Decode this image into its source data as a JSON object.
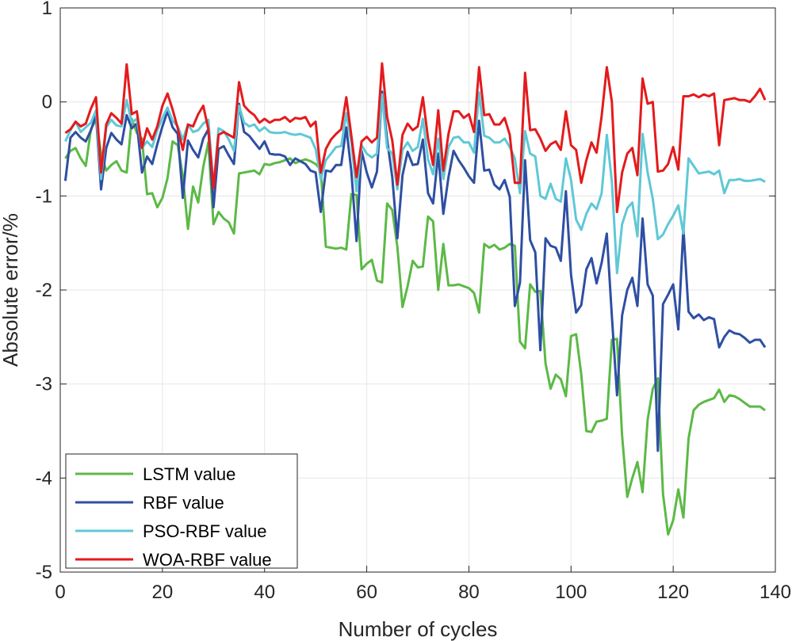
{
  "chart_data": {
    "type": "line",
    "title": "",
    "xlabel": "Number of cycles",
    "ylabel": "Absolute error/%",
    "xlim": [
      0,
      140
    ],
    "ylim": [
      -5,
      1
    ],
    "xticks": [
      0,
      20,
      40,
      60,
      80,
      100,
      120,
      140
    ],
    "yticks": [
      -5,
      -4,
      -3,
      -2,
      -1,
      0,
      1
    ],
    "xtick_labels": [
      "0",
      "20",
      "40",
      "60",
      "80",
      "100",
      "120",
      "140"
    ],
    "ytick_labels": [
      "-5",
      "-4",
      "-3",
      "-2",
      "-1",
      "0",
      "1"
    ],
    "grid": true,
    "legend_position": "bottom-left",
    "x_start": 1,
    "series": [
      {
        "name": "LSTM value",
        "color": "#5cb946",
        "values": [
          -0.6,
          -0.52,
          -0.49,
          -0.6,
          -0.68,
          -0.29,
          -0.19,
          -0.55,
          -0.73,
          -0.67,
          -0.63,
          -0.73,
          -0.75,
          -0.18,
          -0.33,
          -0.39,
          -0.98,
          -0.97,
          -1.12,
          -1.02,
          -0.81,
          -0.42,
          -0.46,
          -0.79,
          -1.35,
          -0.9,
          -1.07,
          -0.69,
          -0.43,
          -1.3,
          -1.17,
          -1.24,
          -1.28,
          -1.4,
          -0.76,
          -0.75,
          -0.74,
          -0.73,
          -0.77,
          -0.66,
          -0.67,
          -0.65,
          -0.64,
          -0.62,
          -0.6,
          -0.65,
          -0.63,
          -0.61,
          -0.63,
          -0.66,
          -0.72,
          -1.54,
          -1.55,
          -1.56,
          -1.55,
          -1.57,
          -0.98,
          -0.99,
          -1.78,
          -1.72,
          -1.68,
          -1.9,
          -1.92,
          -1.08,
          -1.15,
          -1.54,
          -2.18,
          -1.96,
          -1.69,
          -1.76,
          -1.75,
          -1.22,
          -1.27,
          -2.0,
          -1.51,
          -1.95,
          -1.95,
          -1.94,
          -1.96,
          -1.98,
          -2.03,
          -2.24,
          -1.51,
          -1.55,
          -1.52,
          -1.57,
          -1.55,
          -1.51,
          -1.53,
          -2.55,
          -2.62,
          -1.94,
          -2.02,
          -2.01,
          -2.78,
          -3.05,
          -2.9,
          -2.95,
          -3.13,
          -2.49,
          -2.47,
          -2.9,
          -3.5,
          -3.51,
          -3.4,
          -3.39,
          -3.37,
          -2.53,
          -2.52,
          -3.55,
          -4.2,
          -4.0,
          -3.83,
          -4.15,
          -3.38,
          -3.05,
          -2.94,
          -4.17,
          -4.6,
          -4.45,
          -4.12,
          -4.42,
          -3.58,
          -3.28,
          -3.22,
          -3.19,
          -3.17,
          -3.15,
          -3.06,
          -3.19,
          -3.12,
          -3.13,
          -3.16,
          -3.2,
          -3.24,
          -3.24,
          -3.24,
          -3.28
        ]
      },
      {
        "name": "RBF value",
        "color": "#2e4fa2",
        "values": [
          -0.84,
          -0.38,
          -0.32,
          -0.38,
          -0.42,
          -0.3,
          -0.14,
          -0.93,
          -0.49,
          -0.33,
          -0.4,
          -0.45,
          -0.14,
          -0.28,
          -0.23,
          -0.75,
          -0.58,
          -0.66,
          -0.45,
          -0.26,
          -0.1,
          -0.27,
          -0.34,
          -1.02,
          -0.41,
          -0.51,
          -0.59,
          -0.39,
          -0.29,
          -1.12,
          -0.5,
          -0.47,
          -0.57,
          -0.66,
          -0.02,
          -0.32,
          -0.36,
          -0.43,
          -0.5,
          -0.42,
          -0.55,
          -0.56,
          -0.56,
          -0.58,
          -0.67,
          -0.6,
          -0.63,
          -0.66,
          -0.73,
          -0.75,
          -1.17,
          -0.73,
          -0.74,
          -0.67,
          -0.67,
          -0.27,
          -0.74,
          -1.48,
          -0.52,
          -0.75,
          -0.91,
          -0.74,
          0.11,
          -0.4,
          -0.8,
          -1.45,
          -0.78,
          -0.53,
          -0.67,
          -0.66,
          -0.4,
          -0.97,
          -1.08,
          -0.55,
          -1.19,
          -0.8,
          -0.52,
          -0.62,
          -0.7,
          -0.79,
          -0.86,
          -0.2,
          -0.73,
          -0.72,
          -0.88,
          -0.93,
          -0.83,
          -1.01,
          -2.17,
          -1.92,
          -0.62,
          -1.47,
          -1.6,
          -2.64,
          -1.45,
          -1.53,
          -1.55,
          -1.69,
          -0.95,
          -1.84,
          -2.24,
          -2.16,
          -1.78,
          -1.66,
          -1.93,
          -1.71,
          -1.4,
          -2.28,
          -3.12,
          -2.27,
          -2.0,
          -1.87,
          -2.17,
          -1.24,
          -1.94,
          -2.06,
          -3.71,
          -2.15,
          -2.05,
          -1.94,
          -2.42,
          -1.34,
          -2.23,
          -2.3,
          -2.26,
          -2.32,
          -2.29,
          -2.31,
          -2.61,
          -2.5,
          -2.43,
          -2.46,
          -2.47,
          -2.51,
          -2.56,
          -2.53,
          -2.53,
          -2.61
        ]
      },
      {
        "name": "PSO-RBF value",
        "color": "#5fc8d6",
        "values": [
          -0.42,
          -0.3,
          -0.21,
          -0.32,
          -0.27,
          -0.22,
          -0.09,
          -0.82,
          -0.27,
          -0.19,
          -0.25,
          -0.26,
          0.02,
          -0.22,
          -0.18,
          -0.49,
          -0.42,
          -0.48,
          -0.3,
          -0.17,
          -0.06,
          -0.2,
          -0.26,
          -0.4,
          -0.24,
          -0.32,
          -0.3,
          -0.23,
          -0.19,
          -0.9,
          -0.28,
          -0.31,
          -0.4,
          -0.52,
          -0.04,
          -0.22,
          -0.26,
          -0.24,
          -0.31,
          -0.27,
          -0.32,
          -0.33,
          -0.33,
          -0.32,
          -0.34,
          -0.35,
          -0.34,
          -0.36,
          -0.38,
          -0.5,
          -0.82,
          -0.62,
          -0.55,
          -0.48,
          -0.47,
          -0.12,
          -0.43,
          -0.95,
          -0.46,
          -0.55,
          -0.59,
          -0.55,
          0.08,
          -0.49,
          -0.55,
          -0.93,
          -0.51,
          -0.43,
          -0.52,
          -0.48,
          -0.18,
          -0.61,
          -0.77,
          -0.39,
          -0.82,
          -0.48,
          -0.38,
          -0.37,
          -0.43,
          -0.43,
          -0.54,
          0.1,
          -0.36,
          -0.38,
          -0.43,
          -0.43,
          -0.39,
          -0.48,
          -0.6,
          -0.97,
          -0.31,
          -0.55,
          -0.58,
          -1.0,
          -1.03,
          -0.87,
          -1.03,
          -1.06,
          -0.6,
          -0.83,
          -1.25,
          -1.36,
          -1.19,
          -1.08,
          -1.14,
          -0.97,
          -0.35,
          -0.85,
          -1.82,
          -1.3,
          -1.13,
          -1.07,
          -1.43,
          -0.34,
          -0.75,
          -1.03,
          -1.46,
          -1.41,
          -1.3,
          -1.21,
          -1.1,
          -1.4,
          -0.6,
          -0.68,
          -0.76,
          -0.75,
          -0.74,
          -0.77,
          -0.73,
          -0.97,
          -0.83,
          -0.83,
          -0.82,
          -0.84,
          -0.84,
          -0.83,
          -0.82,
          -0.85
        ]
      },
      {
        "name": "WOA-RBF value",
        "color": "#e41a1c",
        "values": [
          -0.33,
          -0.29,
          -0.21,
          -0.26,
          -0.23,
          -0.07,
          0.05,
          -0.75,
          -0.24,
          -0.12,
          -0.17,
          -0.23,
          0.4,
          -0.13,
          -0.1,
          -0.49,
          -0.28,
          -0.4,
          -0.26,
          -0.04,
          0.09,
          -0.08,
          -0.28,
          -0.51,
          -0.24,
          -0.26,
          -0.13,
          -0.04,
          -0.29,
          -0.92,
          -0.35,
          -0.32,
          -0.35,
          -0.38,
          0.21,
          -0.04,
          -0.1,
          -0.14,
          -0.22,
          -0.18,
          -0.22,
          -0.19,
          -0.19,
          -0.16,
          -0.21,
          -0.17,
          -0.18,
          -0.16,
          -0.26,
          -0.21,
          -0.75,
          -0.5,
          -0.4,
          -0.34,
          -0.29,
          0.05,
          -0.36,
          -0.8,
          -0.42,
          -0.37,
          -0.43,
          -0.38,
          0.41,
          -0.16,
          -0.41,
          -0.88,
          -0.35,
          -0.23,
          -0.3,
          -0.26,
          0.05,
          -0.39,
          -0.67,
          -0.09,
          -0.73,
          -0.34,
          -0.1,
          -0.1,
          -0.17,
          -0.13,
          -0.32,
          0.37,
          -0.14,
          -0.13,
          -0.24,
          -0.24,
          -0.17,
          -0.35,
          -0.86,
          -0.86,
          0.31,
          -0.3,
          -0.29,
          -0.39,
          -0.52,
          -0.45,
          -0.42,
          -0.51,
          -0.1,
          -0.46,
          -0.51,
          -0.86,
          -0.62,
          -0.43,
          -0.54,
          -0.15,
          0.37,
          0.0,
          -1.17,
          -0.75,
          -0.55,
          -0.49,
          -0.78,
          0.25,
          -0.02,
          0.0,
          -0.74,
          -0.73,
          -0.66,
          -0.48,
          -0.72,
          0.06,
          0.06,
          0.08,
          0.05,
          0.08,
          0.06,
          0.09,
          -0.46,
          0.02,
          0.03,
          0.04,
          0.02,
          0.02,
          0.0,
          0.06,
          0.14,
          0.02
        ]
      }
    ]
  }
}
